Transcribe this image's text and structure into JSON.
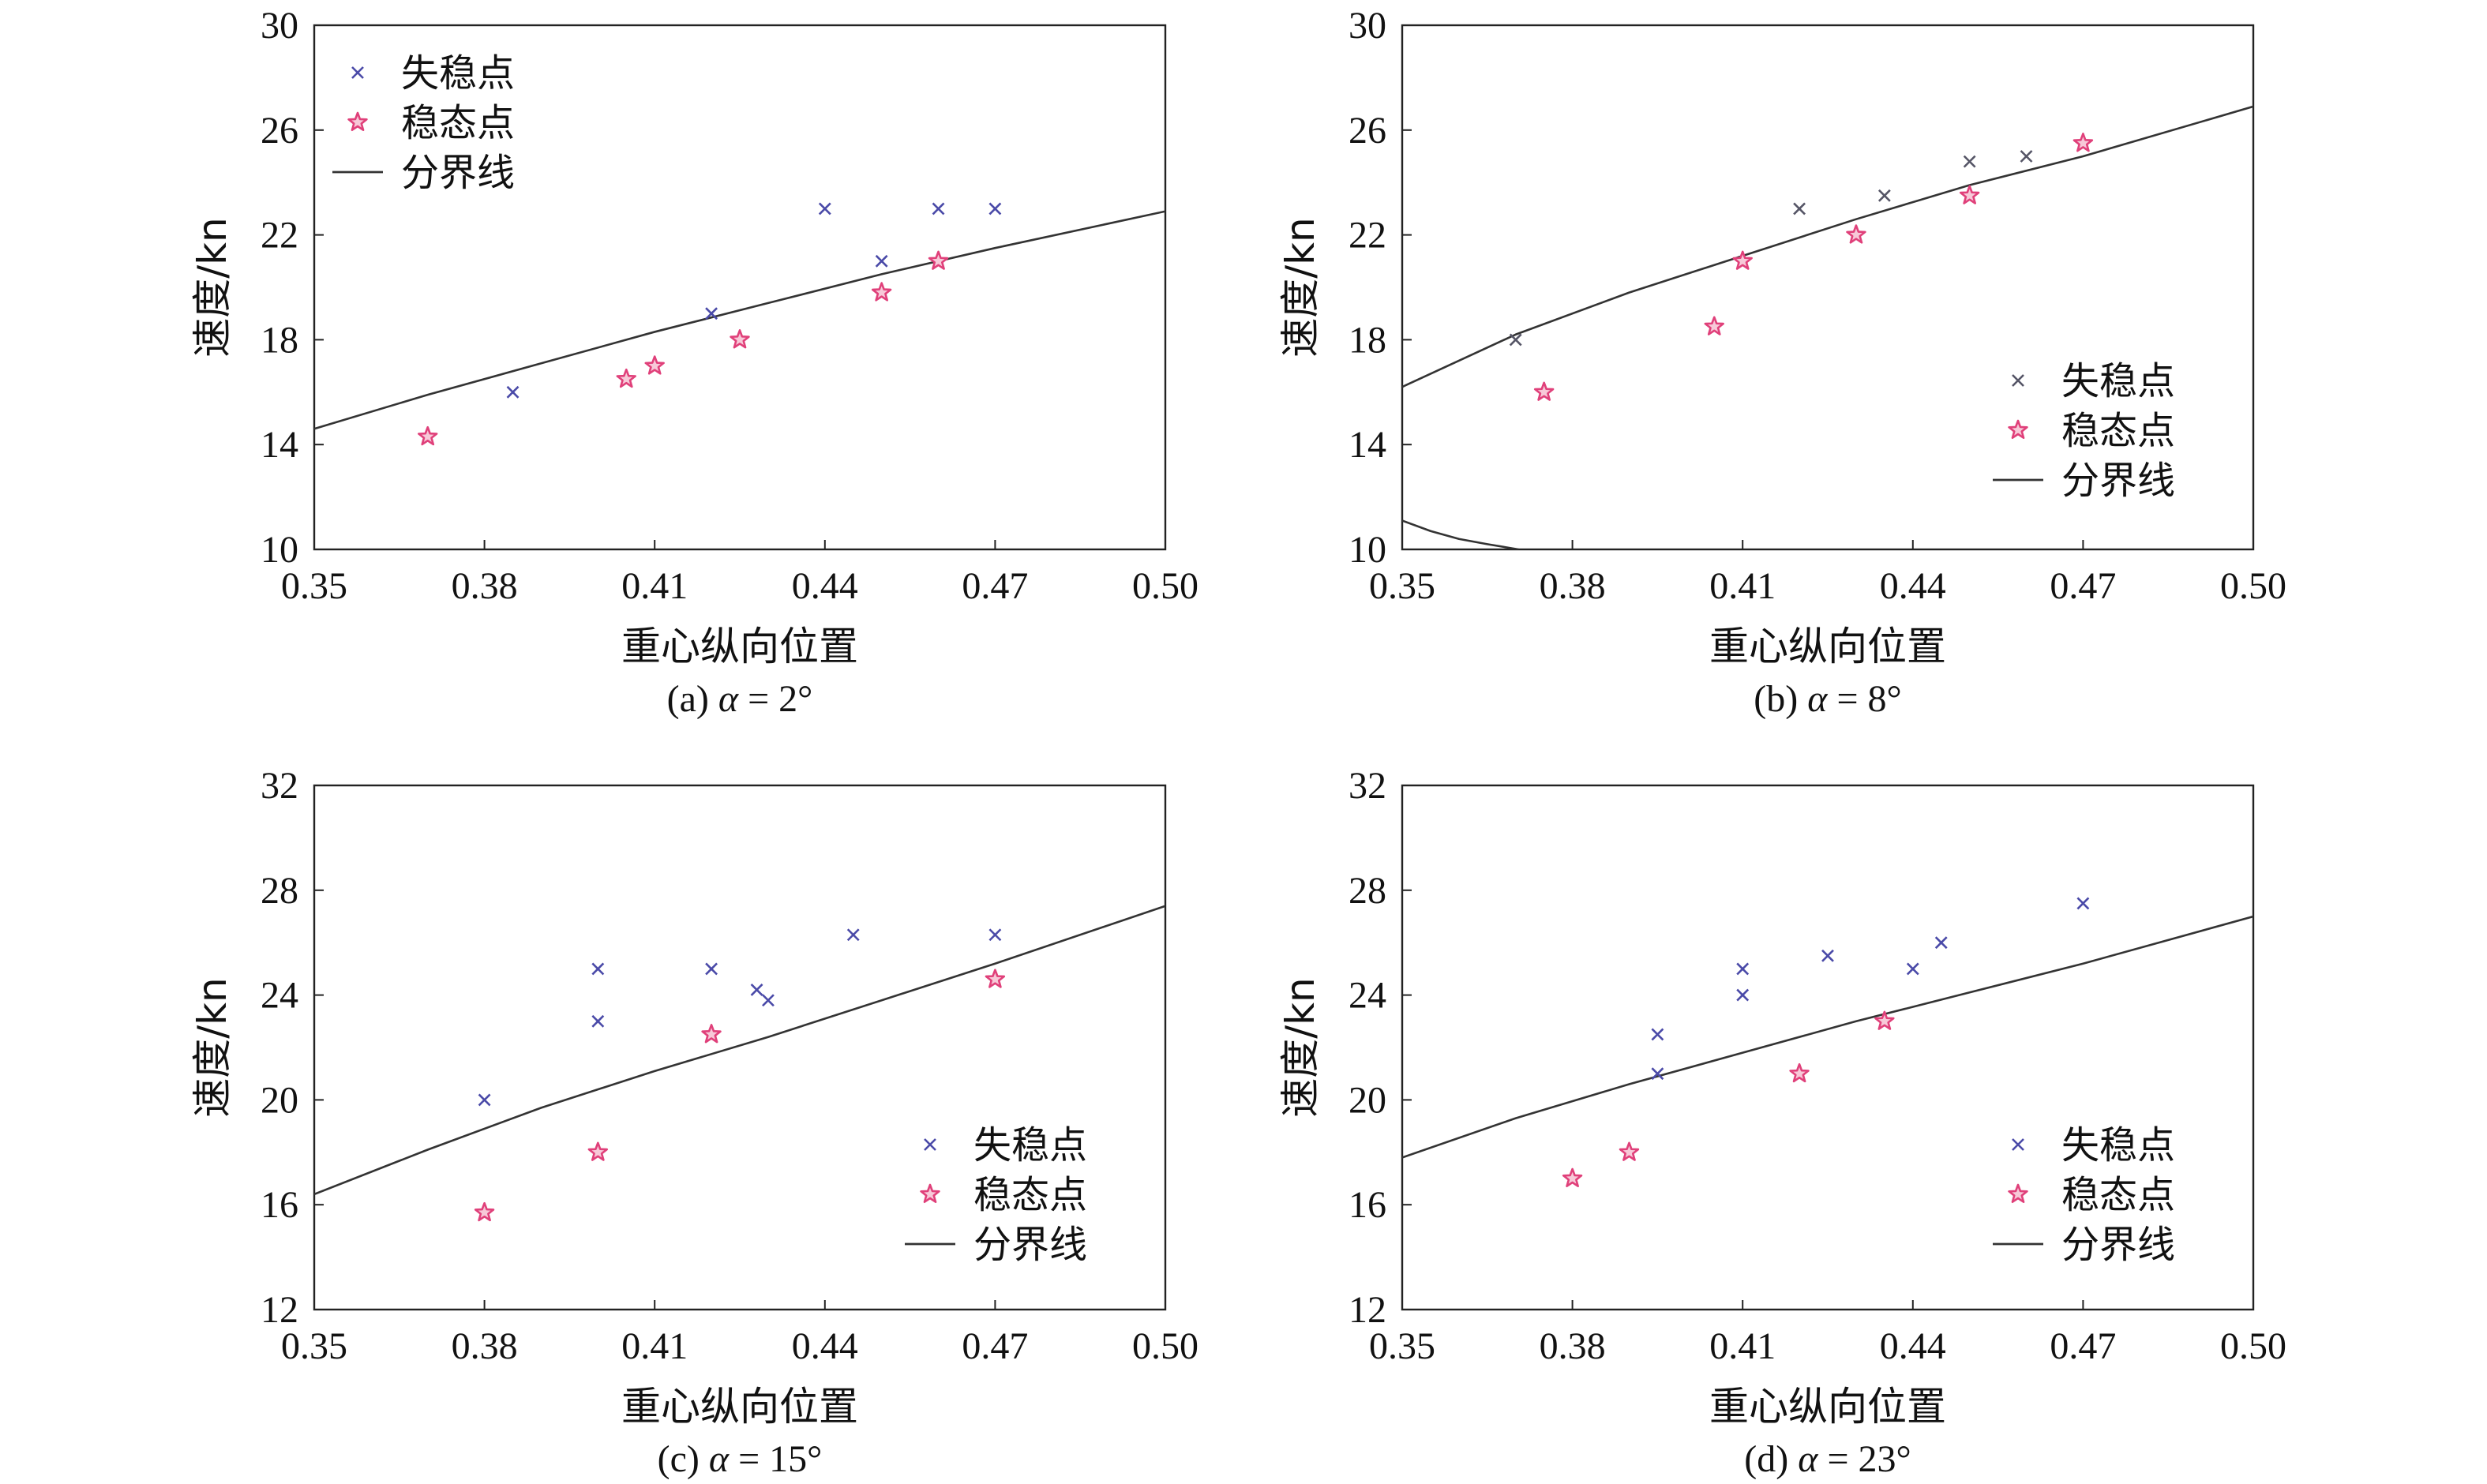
{
  "chart_data": [
    {
      "type": "scatter",
      "caption_prefix": "(a) ",
      "caption_alpha": "α",
      "caption_suffix": " = 2°",
      "xlabel": "重心纵向位置",
      "ylabel": "速度/kn",
      "xlim": [
        0.35,
        0.5
      ],
      "ylim": [
        10,
        30
      ],
      "xticks": [
        "0.35",
        "0.38",
        "0.41",
        "0.44",
        "0.47",
        "0.50"
      ],
      "yticks": [
        "10",
        "14",
        "18",
        "22",
        "26",
        "30"
      ],
      "legend_position": "top-left",
      "legend": [
        "失稳点",
        "稳态点",
        "分界线"
      ],
      "unstable": {
        "name": "失稳点",
        "color": "#4a4aa8",
        "x": [
          0.385,
          0.42,
          0.44,
          0.45,
          0.46,
          0.47
        ],
        "y": [
          16.0,
          19.0,
          23.0,
          21.0,
          23.0,
          23.0
        ]
      },
      "stable": {
        "name": "稳态点",
        "color": "#e0407a",
        "x": [
          0.37,
          0.405,
          0.41,
          0.425,
          0.45,
          0.46
        ],
        "y": [
          14.3,
          16.5,
          17.0,
          18.0,
          19.8,
          21.0
        ]
      },
      "boundary": {
        "name": "分界线",
        "color": "#333333",
        "x": [
          0.35,
          0.37,
          0.39,
          0.41,
          0.43,
          0.45,
          0.47,
          0.5
        ],
        "y": [
          14.6,
          15.9,
          17.1,
          18.3,
          19.4,
          20.5,
          21.5,
          22.9
        ]
      }
    },
    {
      "type": "scatter",
      "caption_prefix": "(b) ",
      "caption_alpha": "α",
      "caption_suffix": " = 8°",
      "xlabel": "重心纵向位置",
      "ylabel": "速度/kn",
      "xlim": [
        0.35,
        0.5
      ],
      "ylim": [
        10,
        30
      ],
      "xticks": [
        "0.35",
        "0.38",
        "0.41",
        "0.44",
        "0.47",
        "0.50"
      ],
      "yticks": [
        "10",
        "14",
        "18",
        "22",
        "26",
        "30"
      ],
      "legend_position": "center-right",
      "legend": [
        "失稳点",
        "稳态点",
        "分界线"
      ],
      "unstable": {
        "name": "失稳点",
        "color": "#555566",
        "x": [
          0.37,
          0.42,
          0.435,
          0.45,
          0.46
        ],
        "y": [
          18.0,
          23.0,
          23.5,
          24.8,
          25.0
        ]
      },
      "stable": {
        "name": "稳态点",
        "color": "#e0407a",
        "x": [
          0.375,
          0.405,
          0.41,
          0.43,
          0.45,
          0.47
        ],
        "y": [
          16.0,
          18.5,
          21.0,
          22.0,
          23.5,
          25.5
        ]
      },
      "boundary": {
        "name": "分界线",
        "color": "#333333",
        "x": [
          0.35,
          0.37,
          0.39,
          0.41,
          0.43,
          0.45,
          0.47,
          0.5
        ],
        "y": [
          16.2,
          18.2,
          19.8,
          21.2,
          22.6,
          23.9,
          25.0,
          26.9
        ]
      },
      "boundary_lower": {
        "color": "#333333",
        "x": [
          0.35,
          0.355,
          0.36,
          0.365,
          0.3705
        ],
        "y": [
          11.1,
          10.7,
          10.4,
          10.2,
          10.0
        ]
      }
    },
    {
      "type": "scatter",
      "caption_prefix": "(c) ",
      "caption_alpha": "α",
      "caption_suffix": " = 15°",
      "xlabel": "重心纵向位置",
      "ylabel": "速度/kn",
      "xlim": [
        0.35,
        0.5
      ],
      "ylim": [
        12,
        32
      ],
      "xticks": [
        "0.35",
        "0.38",
        "0.41",
        "0.44",
        "0.47",
        "0.50"
      ],
      "yticks": [
        "12",
        "16",
        "20",
        "24",
        "28",
        "32"
      ],
      "legend_position": "bottom-right",
      "legend": [
        "失稳点",
        "稳态点",
        "分界线"
      ],
      "unstable": {
        "name": "失稳点",
        "color": "#4a4aa8",
        "x": [
          0.38,
          0.4,
          0.4,
          0.42,
          0.428,
          0.43,
          0.445,
          0.47
        ],
        "y": [
          20.0,
          23.0,
          25.0,
          25.0,
          24.2,
          23.8,
          26.3,
          26.3
        ]
      },
      "stable": {
        "name": "稳态点",
        "color": "#e0407a",
        "x": [
          0.38,
          0.4,
          0.42,
          0.47
        ],
        "y": [
          15.7,
          18.0,
          22.5,
          24.6
        ]
      },
      "boundary": {
        "name": "分界线",
        "color": "#333333",
        "x": [
          0.35,
          0.37,
          0.39,
          0.41,
          0.43,
          0.45,
          0.47,
          0.5
        ],
        "y": [
          16.4,
          18.1,
          19.7,
          21.1,
          22.4,
          23.8,
          25.2,
          27.4
        ]
      }
    },
    {
      "type": "scatter",
      "caption_prefix": "(d) ",
      "caption_alpha": "α",
      "caption_suffix": " = 23°",
      "xlabel": "重心纵向位置",
      "ylabel": "速度/kn",
      "xlim": [
        0.35,
        0.5
      ],
      "ylim": [
        12,
        32
      ],
      "xticks": [
        "0.35",
        "0.38",
        "0.41",
        "0.44",
        "0.47",
        "0.50"
      ],
      "yticks": [
        "12",
        "16",
        "20",
        "24",
        "28",
        "32"
      ],
      "legend_position": "bottom-right",
      "legend": [
        "失稳点",
        "稳态点",
        "分界线"
      ],
      "unstable": {
        "name": "失稳点",
        "color": "#4a4aa8",
        "x": [
          0.395,
          0.395,
          0.41,
          0.41,
          0.425,
          0.44,
          0.445,
          0.47
        ],
        "y": [
          21.0,
          22.5,
          24.0,
          25.0,
          25.5,
          25.0,
          26.0,
          27.5
        ]
      },
      "stable": {
        "name": "稳态点",
        "color": "#e0407a",
        "x": [
          0.38,
          0.39,
          0.42,
          0.435
        ],
        "y": [
          17.0,
          18.0,
          21.0,
          23.0
        ]
      },
      "boundary": {
        "name": "分界线",
        "color": "#333333",
        "x": [
          0.35,
          0.37,
          0.39,
          0.41,
          0.43,
          0.45,
          0.47,
          0.5
        ],
        "y": [
          17.8,
          19.3,
          20.6,
          21.8,
          23.0,
          24.1,
          25.2,
          27.0
        ]
      }
    }
  ]
}
